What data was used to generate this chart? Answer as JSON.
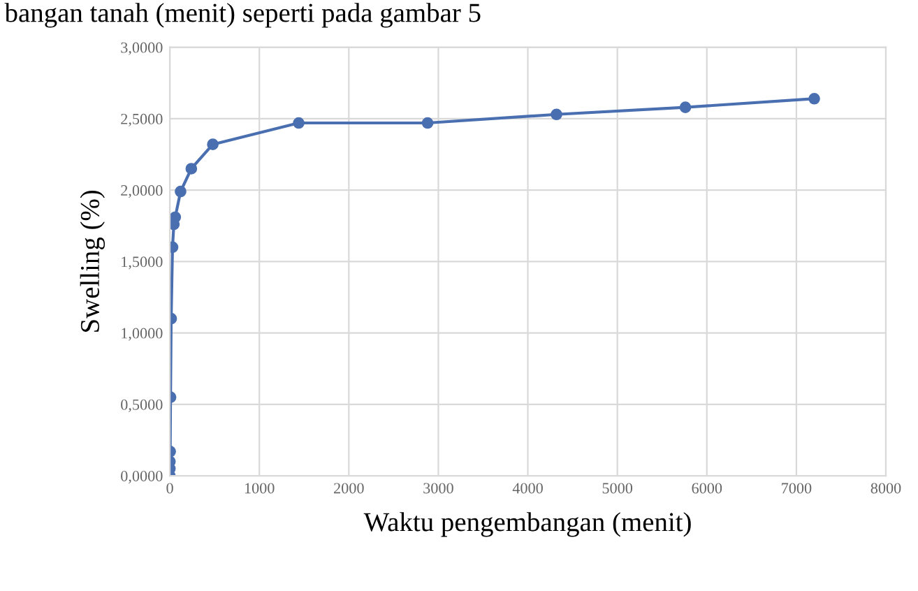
{
  "chart_data": {
    "type": "line",
    "xlabel": "Waktu pengembangan (menit)",
    "ylabel": "Swelling (%)",
    "annotations": [
      "bangan tanah (menit) seperti pada gambar 5"
    ],
    "series": [
      {
        "color": "#4a6fb0",
        "x": [
          0,
          0.5,
          1,
          4,
          8,
          15,
          30,
          45,
          60,
          120,
          240,
          480,
          1440,
          2880,
          4320,
          5760,
          7200
        ],
        "values": [
          0.0,
          0.05,
          0.1,
          0.17,
          0.55,
          1.1,
          1.6,
          1.76,
          1.81,
          1.99,
          2.15,
          2.32,
          2.47,
          2.47,
          2.53,
          2.58,
          2.64
        ]
      }
    ],
    "xlim": [
      0,
      8000
    ],
    "xticks": [
      0,
      1000,
      2000,
      3000,
      4000,
      5000,
      6000,
      7000,
      8000
    ],
    "ylim": [
      0,
      3
    ],
    "yticks": [
      {
        "value": 0,
        "label": "0,0000"
      },
      {
        "value": 0.5,
        "label": "0,5000"
      },
      {
        "value": 1,
        "label": "1,0000"
      },
      {
        "value": 1.5,
        "label": "1,5000"
      },
      {
        "value": 2,
        "label": "2,0000"
      },
      {
        "value": 2.5,
        "label": "2,5000"
      },
      {
        "value": 3,
        "label": "3,0000"
      }
    ],
    "grid": true,
    "marker": "circle",
    "line_style": "solid",
    "legend": false
  }
}
